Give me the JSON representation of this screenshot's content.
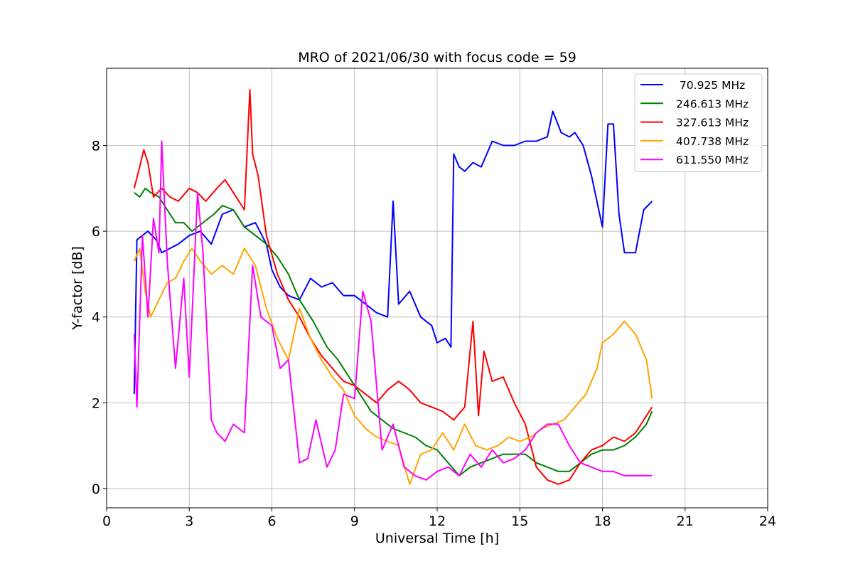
{
  "chart_data": {
    "type": "line",
    "title": "MRO of 2021/06/30 with focus code = 59",
    "xlabel": "Universal Time [h]",
    "ylabel": "Y-factor [dB]",
    "xlim": [
      0,
      24
    ],
    "ylim": [
      -0.45,
      9.8
    ],
    "xticks": [
      0,
      3,
      6,
      9,
      12,
      15,
      18,
      21,
      24
    ],
    "xtick_labels": [
      "0",
      "3",
      "6",
      "9",
      "12",
      "15",
      "18",
      "21",
      "24"
    ],
    "yticks": [
      0,
      2,
      4,
      6,
      8
    ],
    "ytick_labels": [
      "0",
      "2",
      "4",
      "6",
      "8"
    ],
    "grid": true,
    "legend_position": "top-right",
    "series": [
      {
        "name": " 70.925 MHz",
        "color": "#0000ff",
        "x": [
          1.0,
          1.1,
          1.3,
          1.5,
          1.8,
          2.0,
          2.3,
          2.6,
          3.0,
          3.4,
          3.8,
          4.2,
          4.6,
          5.0,
          5.4,
          5.8,
          6.0,
          6.3,
          6.6,
          7.0,
          7.4,
          7.8,
          8.2,
          8.6,
          9.0,
          9.4,
          9.8,
          10.2,
          10.4,
          10.6,
          11.0,
          11.4,
          11.8,
          12.0,
          12.3,
          12.5,
          12.6,
          12.8,
          13.0,
          13.3,
          13.6,
          14.0,
          14.4,
          14.8,
          15.2,
          15.6,
          16.0,
          16.2,
          16.5,
          16.8,
          17.0,
          17.3,
          17.6,
          17.9,
          18.0,
          18.2,
          18.4,
          18.6,
          18.8,
          19.0,
          19.2,
          19.5,
          19.8
        ],
        "y": [
          2.2,
          5.8,
          5.9,
          6.0,
          5.8,
          5.5,
          5.6,
          5.7,
          5.9,
          6.0,
          5.7,
          6.4,
          6.5,
          6.1,
          6.2,
          5.7,
          5.1,
          4.7,
          4.5,
          4.4,
          4.9,
          4.7,
          4.8,
          4.5,
          4.5,
          4.3,
          4.1,
          4.0,
          6.7,
          4.3,
          4.6,
          4.0,
          3.8,
          3.4,
          3.5,
          3.3,
          7.8,
          7.5,
          7.4,
          7.6,
          7.5,
          8.1,
          8.0,
          8.0,
          8.1,
          8.1,
          8.2,
          8.8,
          8.3,
          8.2,
          8.3,
          8.0,
          7.3,
          6.4,
          6.1,
          8.5,
          8.5,
          6.4,
          5.5,
          5.5,
          5.5,
          6.5,
          6.7
        ]
      },
      {
        "name": "246.613 MHz",
        "color": "#008000",
        "x": [
          1.0,
          1.2,
          1.4,
          1.6,
          1.9,
          2.2,
          2.5,
          2.8,
          3.1,
          3.5,
          3.9,
          4.2,
          4.6,
          5.0,
          5.4,
          5.8,
          6.2,
          6.6,
          7.0,
          7.5,
          8.0,
          8.4,
          8.8,
          9.2,
          9.6,
          10.0,
          10.4,
          10.8,
          11.2,
          11.6,
          12.0,
          12.4,
          12.8,
          13.2,
          13.6,
          14.0,
          14.4,
          14.8,
          15.2,
          15.6,
          16.0,
          16.4,
          16.8,
          17.2,
          17.6,
          18.0,
          18.4,
          18.8,
          19.2,
          19.6,
          19.8
        ],
        "y": [
          6.9,
          6.8,
          7.0,
          6.9,
          6.8,
          6.5,
          6.2,
          6.2,
          6.0,
          6.2,
          6.4,
          6.6,
          6.5,
          6.1,
          5.9,
          5.7,
          5.4,
          5.0,
          4.4,
          3.9,
          3.3,
          3.0,
          2.6,
          2.2,
          1.8,
          1.6,
          1.4,
          1.3,
          1.2,
          1.0,
          0.9,
          0.6,
          0.3,
          0.5,
          0.6,
          0.7,
          0.8,
          0.8,
          0.8,
          0.6,
          0.5,
          0.4,
          0.4,
          0.6,
          0.8,
          0.9,
          0.9,
          1.0,
          1.2,
          1.5,
          1.8
        ]
      },
      {
        "name": "327.613 MHz",
        "color": "#ff0000",
        "x": [
          1.0,
          1.2,
          1.35,
          1.5,
          1.7,
          2.0,
          2.3,
          2.6,
          3.0,
          3.3,
          3.6,
          4.0,
          4.3,
          4.6,
          5.0,
          5.2,
          5.3,
          5.5,
          5.8,
          6.2,
          6.6,
          7.0,
          7.4,
          7.8,
          8.2,
          8.6,
          9.0,
          9.4,
          9.8,
          10.2,
          10.6,
          11.0,
          11.4,
          11.8,
          12.2,
          12.6,
          13.0,
          13.3,
          13.5,
          13.7,
          14.0,
          14.4,
          14.8,
          15.2,
          15.6,
          16.0,
          16.4,
          16.8,
          17.2,
          17.6,
          18.0,
          18.4,
          18.8,
          19.2,
          19.6,
          19.8
        ],
        "y": [
          7.0,
          7.5,
          7.9,
          7.6,
          6.8,
          7.0,
          6.8,
          6.7,
          7.0,
          6.9,
          6.7,
          7.0,
          7.2,
          6.9,
          6.5,
          9.3,
          7.8,
          7.3,
          5.9,
          5.0,
          4.4,
          4.0,
          3.5,
          3.1,
          2.8,
          2.5,
          2.4,
          2.2,
          2.0,
          2.3,
          2.5,
          2.3,
          2.0,
          1.9,
          1.8,
          1.6,
          1.9,
          3.9,
          1.7,
          3.2,
          2.5,
          2.6,
          2.0,
          1.5,
          0.5,
          0.2,
          0.1,
          0.2,
          0.6,
          0.9,
          1.0,
          1.2,
          1.1,
          1.3,
          1.7,
          1.9
        ]
      },
      {
        "name": "407.738 MHz",
        "color": "#ffa500",
        "x": [
          1.0,
          1.2,
          1.4,
          1.6,
          1.9,
          2.2,
          2.5,
          2.8,
          3.1,
          3.4,
          3.8,
          4.2,
          4.6,
          5.0,
          5.4,
          5.8,
          6.2,
          6.6,
          7.0,
          7.4,
          7.8,
          8.2,
          8.6,
          9.0,
          9.4,
          9.8,
          10.2,
          10.6,
          11.0,
          11.4,
          11.8,
          12.2,
          12.6,
          13.0,
          13.4,
          13.8,
          14.2,
          14.6,
          15.0,
          15.4,
          15.8,
          16.2,
          16.6,
          17.0,
          17.4,
          17.8,
          18.0,
          18.4,
          18.8,
          19.2,
          19.6,
          19.8
        ],
        "y": [
          5.3,
          5.6,
          4.6,
          4.0,
          4.4,
          4.8,
          4.9,
          5.3,
          5.6,
          5.3,
          5.0,
          5.2,
          5.0,
          5.6,
          5.2,
          4.2,
          3.5,
          3.0,
          4.2,
          3.5,
          3.0,
          2.6,
          2.3,
          1.7,
          1.4,
          1.2,
          1.1,
          1.0,
          0.1,
          0.8,
          0.9,
          1.3,
          0.9,
          1.5,
          1.0,
          0.9,
          1.0,
          1.2,
          1.1,
          1.2,
          1.4,
          1.5,
          1.6,
          1.9,
          2.2,
          2.8,
          3.4,
          3.6,
          3.9,
          3.6,
          3.0,
          2.1
        ]
      },
      {
        "name": "611.550 MHz",
        "color": "#ff00ff",
        "x": [
          1.0,
          1.1,
          1.3,
          1.5,
          1.7,
          1.9,
          2.0,
          2.2,
          2.5,
          2.8,
          3.0,
          3.3,
          3.5,
          3.8,
          4.0,
          4.3,
          4.6,
          5.0,
          5.3,
          5.6,
          6.0,
          6.3,
          6.6,
          7.0,
          7.3,
          7.6,
          8.0,
          8.3,
          8.6,
          9.0,
          9.3,
          9.6,
          10.0,
          10.4,
          10.8,
          11.2,
          11.6,
          12.0,
          12.4,
          12.8,
          13.2,
          13.6,
          14.0,
          14.4,
          14.8,
          15.2,
          15.6,
          16.0,
          16.4,
          16.8,
          17.2,
          17.6,
          18.0,
          18.4,
          18.8,
          19.2,
          19.6,
          19.8
        ],
        "y": [
          3.6,
          1.9,
          5.9,
          4.0,
          6.3,
          5.5,
          8.1,
          5.3,
          2.8,
          4.9,
          2.6,
          6.9,
          5.5,
          1.6,
          1.3,
          1.1,
          1.5,
          1.3,
          5.2,
          4.0,
          3.8,
          2.8,
          3.0,
          0.6,
          0.7,
          1.6,
          0.5,
          0.9,
          2.2,
          2.1,
          4.6,
          3.9,
          0.9,
          1.5,
          0.5,
          0.3,
          0.2,
          0.4,
          0.5,
          0.3,
          0.8,
          0.5,
          0.9,
          0.6,
          0.7,
          0.9,
          1.3,
          1.5,
          1.5,
          1.0,
          0.6,
          0.5,
          0.4,
          0.4,
          0.3,
          0.3,
          0.3,
          0.3
        ]
      }
    ]
  }
}
